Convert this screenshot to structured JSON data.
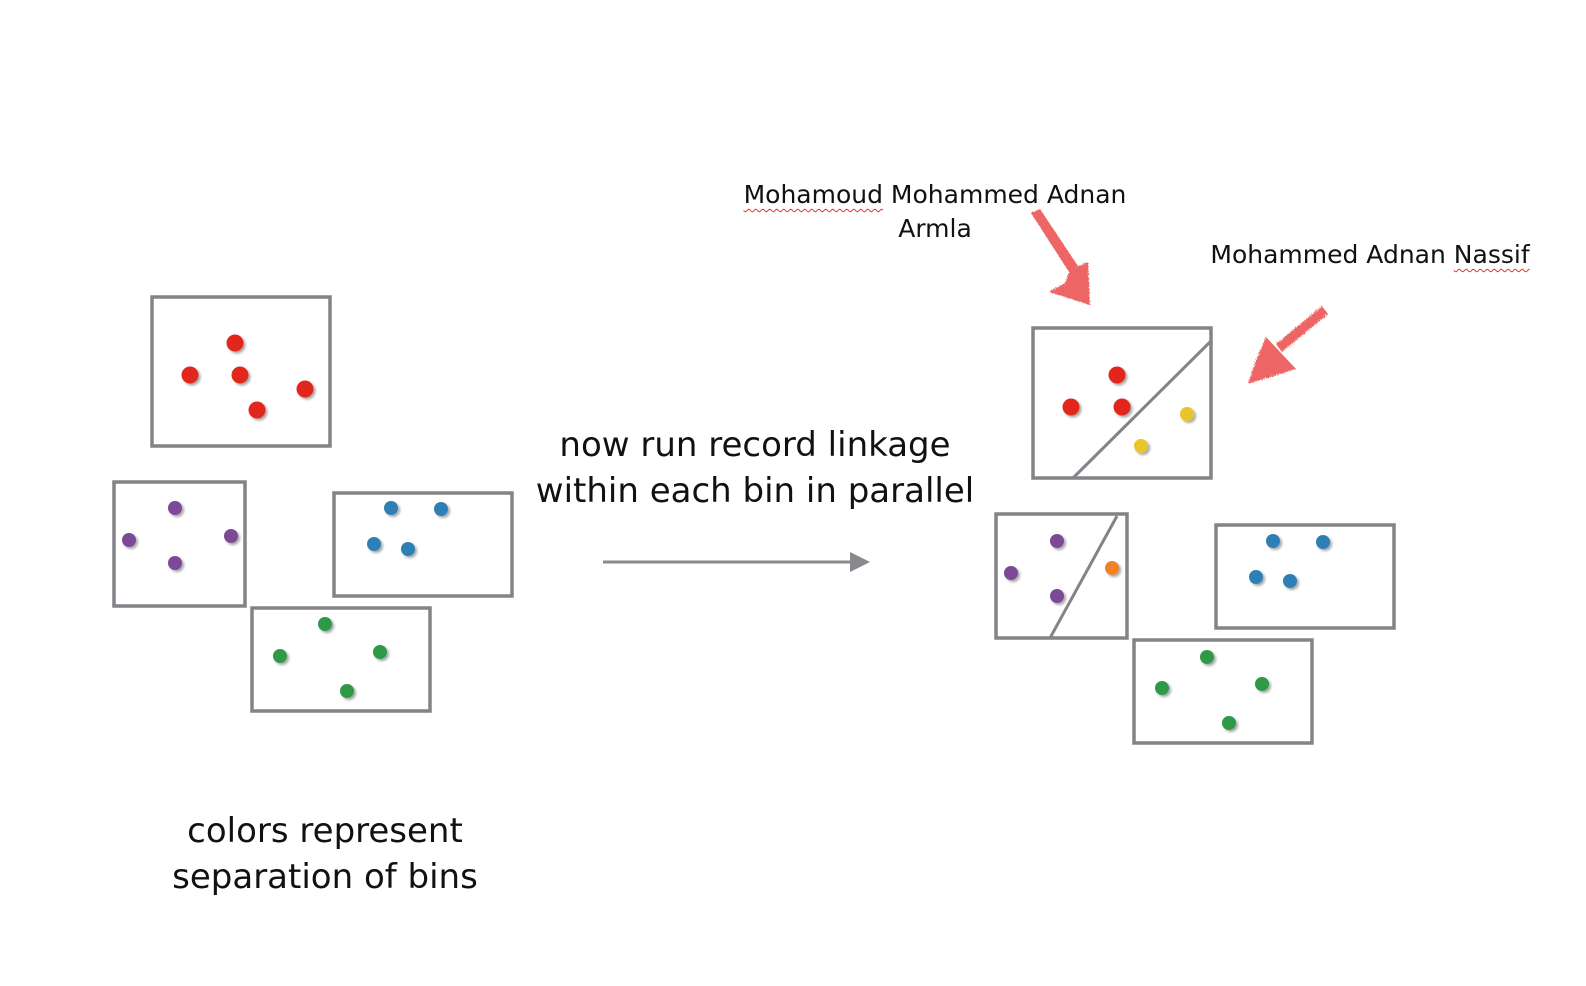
{
  "left_caption": {
    "line1": "colors represent",
    "line2": "separation of bins"
  },
  "center_caption": {
    "line1": "now run record linkage",
    "line2": "within each bin in parallel"
  },
  "annotations": {
    "top": {
      "word1": "Mohamoud",
      "rest1": " Mohammed Adnan",
      "line2": "Armla"
    },
    "right": {
      "prefix": "Mohammed Adnan ",
      "word": "Nassif"
    }
  },
  "colors": {
    "red": "#e3281c",
    "purple": "#7b4a97",
    "blue": "#2f7fb6",
    "green": "#2e9a46",
    "yellow": "#e8c529",
    "orange": "#ee8227",
    "box_stroke": "#838388",
    "arrow_annotation": "#ec5a58",
    "arrow_main": "#8a8a8e"
  }
}
